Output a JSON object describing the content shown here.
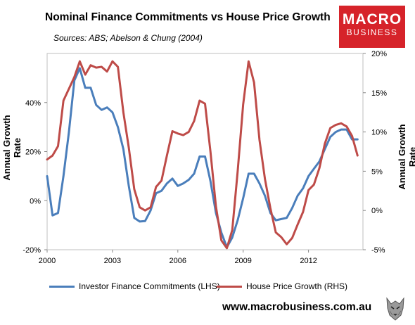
{
  "title": "Nominal Finance Commitments vs House Price Growth",
  "subtitle": "Sources: ABS; Abelson & Chung (2004)",
  "logo": {
    "line1": "MACRO",
    "line2": "BUSINESS"
  },
  "footer": "www.macrobusiness.com.au",
  "colors": {
    "lhs_series": "#4a7ebb",
    "rhs_series": "#be4b48",
    "logo_bg": "#d6232a"
  },
  "chart_data": {
    "type": "line",
    "ylabel_left": "Annual Growth Rate",
    "ylabel_right": "Annual Growth Rate",
    "xlim": [
      2000,
      2014.5
    ],
    "ylim_left": [
      -0.2,
      0.6
    ],
    "ylim_right": [
      -0.05,
      0.2
    ],
    "x_ticks": [
      2000,
      2003,
      2006,
      2009,
      2012
    ],
    "x_tick_labels": [
      "2000",
      "2003",
      "2006",
      "2009",
      "2012"
    ],
    "y_left_ticks": [
      -0.2,
      0,
      0.2,
      0.4
    ],
    "y_left_tick_labels": [
      "-20%",
      "0%",
      "20%",
      "40%"
    ],
    "y_right_ticks": [
      -0.05,
      0,
      0.05,
      0.1,
      0.15,
      0.2
    ],
    "y_right_tick_labels": [
      "-5%",
      "0%",
      "5%",
      "10%",
      "15%",
      "20%"
    ],
    "grid": false,
    "legend_position": "bottom",
    "series": [
      {
        "name": "Investor Finance Commitments (LHS)",
        "axis": "left",
        "x": [
          2000.0,
          2000.25,
          2000.5,
          2000.75,
          2001.0,
          2001.25,
          2001.5,
          2001.75,
          2002.0,
          2002.25,
          2002.5,
          2002.75,
          2003.0,
          2003.25,
          2003.5,
          2003.75,
          2004.0,
          2004.25,
          2004.5,
          2004.75,
          2005.0,
          2005.25,
          2005.5,
          2005.75,
          2006.0,
          2006.25,
          2006.5,
          2006.75,
          2007.0,
          2007.25,
          2007.5,
          2007.75,
          2008.0,
          2008.25,
          2008.5,
          2008.75,
          2009.0,
          2009.25,
          2009.5,
          2009.75,
          2010.0,
          2010.25,
          2010.5,
          2010.75,
          2011.0,
          2011.25,
          2011.5,
          2011.75,
          2012.0,
          2012.25,
          2012.5,
          2012.75,
          2013.0,
          2013.25,
          2013.5,
          2013.75,
          2014.0,
          2014.25
        ],
        "values": [
          0.1,
          -0.06,
          -0.05,
          0.1,
          0.28,
          0.49,
          0.54,
          0.46,
          0.46,
          0.39,
          0.37,
          0.38,
          0.36,
          0.3,
          0.21,
          0.06,
          -0.07,
          -0.085,
          -0.083,
          -0.04,
          0.03,
          0.04,
          0.07,
          0.09,
          0.06,
          0.07,
          0.085,
          0.11,
          0.18,
          0.18,
          0.08,
          -0.05,
          -0.13,
          -0.19,
          -0.15,
          -0.08,
          0.01,
          0.11,
          0.11,
          0.07,
          0.02,
          -0.05,
          -0.08,
          -0.075,
          -0.07,
          -0.03,
          0.02,
          0.05,
          0.1,
          0.13,
          0.16,
          0.21,
          0.26,
          0.28,
          0.29,
          0.29,
          0.25,
          0.25
        ]
      },
      {
        "name": "House Price Growth (RHS)",
        "axis": "right",
        "x": [
          2000.0,
          2000.25,
          2000.5,
          2000.75,
          2001.0,
          2001.25,
          2001.5,
          2001.75,
          2002.0,
          2002.25,
          2002.5,
          2002.75,
          2003.0,
          2003.25,
          2003.5,
          2003.75,
          2004.0,
          2004.25,
          2004.5,
          2004.75,
          2005.0,
          2005.25,
          2005.5,
          2005.75,
          2006.0,
          2006.25,
          2006.5,
          2006.75,
          2007.0,
          2007.25,
          2007.5,
          2007.75,
          2008.0,
          2008.25,
          2008.5,
          2008.75,
          2009.0,
          2009.25,
          2009.5,
          2009.75,
          2010.0,
          2010.25,
          2010.5,
          2010.75,
          2011.0,
          2011.25,
          2011.5,
          2011.75,
          2012.0,
          2012.25,
          2012.5,
          2012.75,
          2013.0,
          2013.25,
          2013.5,
          2013.75,
          2014.0,
          2014.25
        ],
        "values": [
          0.065,
          0.07,
          0.082,
          0.14,
          0.155,
          0.17,
          0.19,
          0.173,
          0.185,
          0.182,
          0.183,
          0.177,
          0.19,
          0.183,
          0.125,
          0.08,
          0.027,
          0.004,
          0.0,
          0.004,
          0.03,
          0.038,
          0.07,
          0.101,
          0.098,
          0.096,
          0.1,
          0.114,
          0.14,
          0.136,
          0.075,
          0.005,
          -0.038,
          -0.048,
          -0.025,
          0.05,
          0.135,
          0.19,
          0.163,
          0.09,
          0.04,
          0.003,
          -0.028,
          -0.034,
          -0.043,
          -0.035,
          -0.018,
          -0.002,
          0.026,
          0.033,
          0.054,
          0.085,
          0.105,
          0.109,
          0.111,
          0.107,
          0.095,
          0.07
        ]
      }
    ]
  }
}
